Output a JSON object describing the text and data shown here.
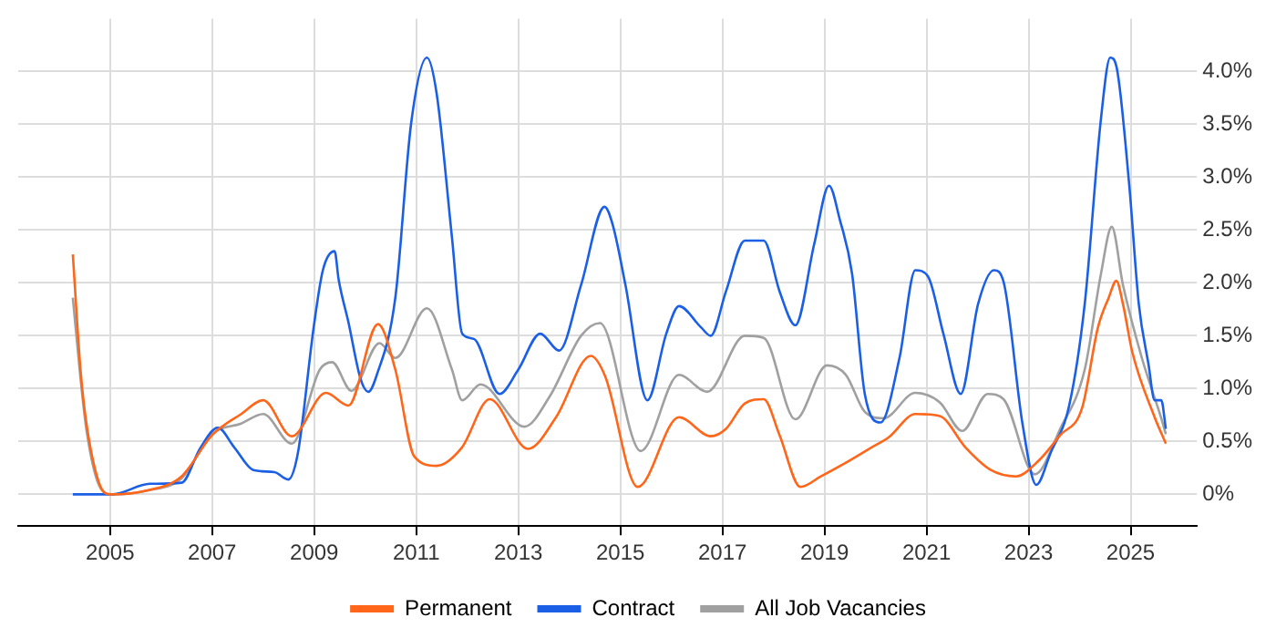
{
  "chart_data": {
    "type": "line",
    "legend": "bottom",
    "grid": true,
    "marker": "none",
    "line_style": "solid",
    "xlim": [
      2003.2,
      2026.3
    ],
    "xticks": [
      2005,
      2007,
      2009,
      2011,
      2013,
      2015,
      2017,
      2019,
      2021,
      2023,
      2025
    ],
    "ylim": [
      -0.3,
      4.5
    ],
    "yticks": [
      {
        "value": 0,
        "label": "0%"
      },
      {
        "value": 0.5,
        "label": "0.5%"
      },
      {
        "value": 1,
        "label": "1.0%"
      },
      {
        "value": 1.5,
        "label": "1.5%"
      },
      {
        "value": 2,
        "label": "2.0%"
      },
      {
        "value": 2.5,
        "label": "2.5%"
      },
      {
        "value": 3,
        "label": "3.0%"
      },
      {
        "value": 3.5,
        "label": "3.5%"
      },
      {
        "value": 4,
        "label": "4.0%"
      }
    ],
    "series": [
      {
        "name": "Permanent",
        "color": "#ff6619",
        "x": [
          2004.27,
          2004.42,
          2004.54,
          2004.79,
          2004.99,
          2005.65,
          2006.4,
          2007.0,
          2007.57,
          2008.0,
          2008.56,
          2009.23,
          2009.67,
          2010.25,
          2010.59,
          2010.96,
          2011.4,
          2011.89,
          2012.44,
          2013.19,
          2013.74,
          2014.42,
          2014.7,
          2015.34,
          2016.15,
          2016.77,
          2017.07,
          2017.44,
          2017.81,
          2018.12,
          2018.53,
          2018.93,
          2019.42,
          2019.91,
          2020.26,
          2020.78,
          2021.26,
          2021.77,
          2022.26,
          2022.75,
          2023.2,
          2023.62,
          2024.05,
          2024.36,
          2024.57,
          2024.72,
          2024.85,
          2025.03,
          2025.47,
          2025.69
        ],
        "values": [
          2.27,
          1.18,
          0.66,
          0.1,
          0,
          0.03,
          0.17,
          0.56,
          0.76,
          0.89,
          0.55,
          0.96,
          0.84,
          1.61,
          1.18,
          0.36,
          0.27,
          0.44,
          0.9,
          0.43,
          0.73,
          1.31,
          1.12,
          0.07,
          0.73,
          0.55,
          0.62,
          0.86,
          0.9,
          0.56,
          0.07,
          0.17,
          0.3,
          0.44,
          0.54,
          0.76,
          0.74,
          0.44,
          0.23,
          0.17,
          0.32,
          0.56,
          0.82,
          1.58,
          1.86,
          2.02,
          1.8,
          1.35,
          0.73,
          0.48
        ]
      },
      {
        "name": "Contract",
        "color": "#1a5fe6",
        "x": [
          2004.27,
          2005.04,
          2005.78,
          2006.4,
          2006.77,
          2007.11,
          2007.44,
          2007.81,
          2008.22,
          2008.49,
          2008.68,
          2008.99,
          2009.17,
          2009.4,
          2009.48,
          2009.67,
          2009.91,
          2010.06,
          2010.22,
          2010.59,
          2010.9,
          2011.21,
          2011.4,
          2011.7,
          2011.9,
          2012.13,
          2012.63,
          2013.0,
          2013.43,
          2013.8,
          2014.23,
          2014.69,
          2014.85,
          2015.1,
          2015.53,
          2015.9,
          2016.15,
          2016.58,
          2016.77,
          2017.07,
          2017.44,
          2017.81,
          2018.12,
          2018.43,
          2018.8,
          2019.09,
          2019.3,
          2019.54,
          2019.79,
          2020.1,
          2020.47,
          2020.78,
          2021.03,
          2021.33,
          2021.67,
          2022.01,
          2022.32,
          2022.51,
          2022.88,
          2023.15,
          2023.43,
          2023.8,
          2024.1,
          2024.42,
          2024.6,
          2024.72,
          2024.97,
          2025.16,
          2025.35,
          2025.47,
          2025.6,
          2025.69
        ],
        "values": [
          0,
          0,
          0.1,
          0.11,
          0.44,
          0.63,
          0.44,
          0.23,
          0.21,
          0.14,
          0.39,
          1.58,
          2.12,
          2.3,
          2.03,
          1.63,
          1.09,
          0.97,
          1.12,
          1.86,
          3.51,
          4.13,
          3.79,
          2.43,
          1.52,
          1.47,
          0.95,
          1.18,
          1.52,
          1.36,
          1.98,
          2.72,
          2.55,
          1.98,
          0.89,
          1.52,
          1.78,
          1.58,
          1.5,
          1.92,
          2.4,
          2.4,
          1.92,
          1.6,
          2.37,
          2.92,
          2.6,
          2.09,
          0.95,
          0.68,
          1.29,
          2.12,
          2.06,
          1.52,
          0.95,
          1.8,
          2.12,
          2.01,
          0.67,
          0.09,
          0.39,
          0.85,
          1.8,
          3.56,
          4.13,
          4.05,
          2.94,
          1.8,
          1.23,
          0.89,
          0.89,
          0.62
        ]
      },
      {
        "name": "All Job Vacancies",
        "color": "#a0a0a0",
        "x": [
          2004.27,
          2004.42,
          2004.54,
          2004.79,
          2005.04,
          2005.78,
          2006.4,
          2007.0,
          2007.57,
          2008.0,
          2008.56,
          2009.11,
          2009.35,
          2009.73,
          2010.28,
          2010.59,
          2011.21,
          2011.7,
          2011.9,
          2012.26,
          2013.12,
          2013.62,
          2014.23,
          2014.6,
          2015.4,
          2016.15,
          2016.7,
          2017.44,
          2017.81,
          2018.43,
          2019.05,
          2019.42,
          2019.79,
          2020.16,
          2020.78,
          2021.26,
          2021.7,
          2022.2,
          2022.51,
          2023.12,
          2023.62,
          2024.1,
          2024.42,
          2024.63,
          2024.85,
          2025.22,
          2025.6,
          2025.69
        ],
        "values": [
          1.86,
          1.1,
          0.6,
          0.08,
          0,
          0.04,
          0.15,
          0.57,
          0.67,
          0.76,
          0.48,
          1.18,
          1.25,
          0.98,
          1.43,
          1.29,
          1.76,
          1.18,
          0.89,
          1.04,
          0.64,
          0.93,
          1.5,
          1.62,
          0.41,
          1.13,
          0.97,
          1.5,
          1.48,
          0.71,
          1.22,
          1.13,
          0.78,
          0.72,
          0.96,
          0.87,
          0.6,
          0.95,
          0.9,
          0.19,
          0.62,
          1.18,
          2.09,
          2.53,
          1.98,
          1.29,
          0.72,
          0.57
        ]
      }
    ]
  }
}
